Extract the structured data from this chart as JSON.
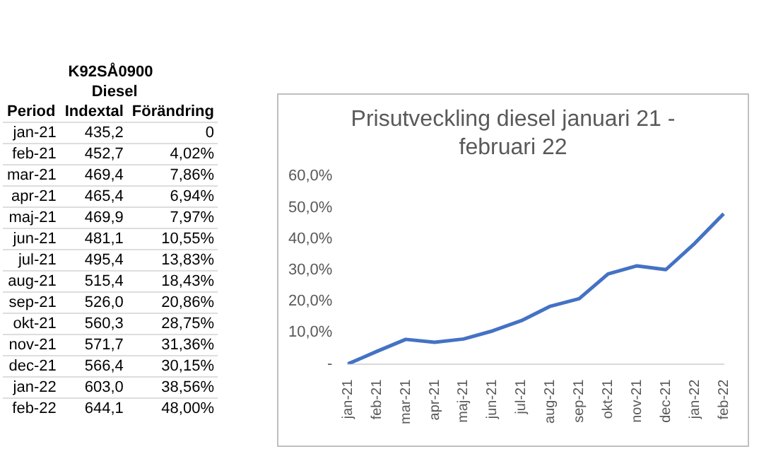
{
  "chart_data": [
    {
      "type": "other",
      "title": "K92SÅ0900",
      "subtitle": "Diesel",
      "xlabel": "Period",
      "categories": [
        "jan-21",
        "feb-21",
        "mar-21",
        "apr-21",
        "maj-21",
        "jun-21",
        "jul-21",
        "aug-21",
        "sep-21",
        "okt-21",
        "nov-21",
        "dec-21",
        "jan-22",
        "feb-22"
      ],
      "series": [
        {
          "name": "Indextal",
          "values": [
            435.2,
            452.7,
            469.4,
            465.4,
            469.9,
            481.1,
            495.4,
            515.4,
            526.0,
            560.3,
            571.7,
            566.4,
            603.0,
            644.1
          ],
          "value_labels": [
            "435,2",
            "452,7",
            "469,4",
            "465,4",
            "469,9",
            "481,1",
            "495,4",
            "515,4",
            "526,0",
            "560,3",
            "571,7",
            "566,4",
            "603,0",
            "644,1"
          ]
        },
        {
          "name": "Förändring",
          "values": [
            0,
            4.02,
            7.86,
            6.94,
            7.97,
            10.55,
            13.83,
            18.43,
            20.86,
            28.75,
            31.36,
            30.15,
            38.56,
            48.0
          ],
          "value_labels": [
            "0",
            "4,02%",
            "7,86%",
            "6,94%",
            "7,97%",
            "10,55%",
            "13,83%",
            "18,43%",
            "20,86%",
            "28,75%",
            "31,36%",
            "30,15%",
            "38,56%",
            "48,00%"
          ]
        }
      ]
    },
    {
      "type": "line",
      "title": "Prisutveckling diesel januari 21 - februari 22",
      "categories": [
        "jan-21",
        "feb-21",
        "mar-21",
        "apr-21",
        "maj-21",
        "jun-21",
        "jul-21",
        "aug-21",
        "sep-21",
        "okt-21",
        "nov-21",
        "dec-21",
        "jan-22",
        "feb-22"
      ],
      "values": [
        0,
        4.02,
        7.86,
        6.94,
        7.97,
        10.55,
        13.83,
        18.43,
        20.86,
        28.75,
        31.36,
        30.15,
        38.56,
        48.0
      ],
      "color": "#4472c4",
      "marker": "none",
      "ylim": [
        0,
        60
      ],
      "yticks": [
        {
          "value": 0,
          "label": "-"
        },
        {
          "value": 10,
          "label": "10,0%"
        },
        {
          "value": 20,
          "label": "20,0%"
        },
        {
          "value": 30,
          "label": "30,0%"
        },
        {
          "value": 40,
          "label": "40,0%"
        },
        {
          "value": 50,
          "label": "50,0%"
        },
        {
          "value": 60,
          "label": "60,0%"
        }
      ],
      "grid": false,
      "legend": false
    }
  ]
}
